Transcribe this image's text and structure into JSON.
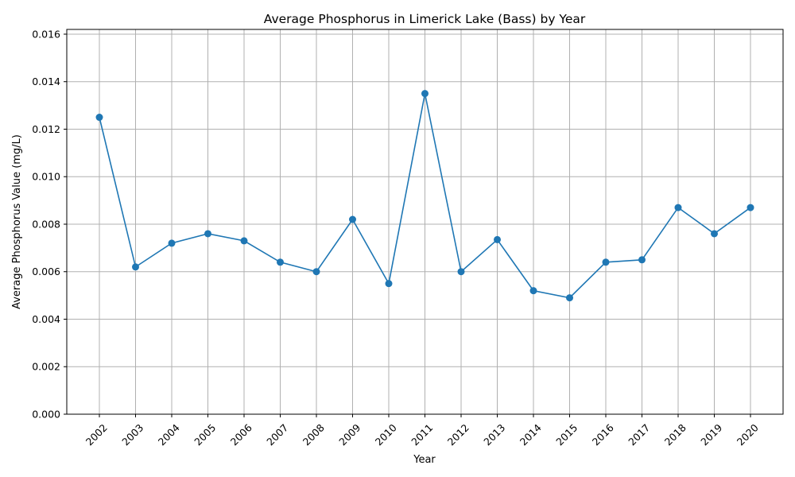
{
  "chart_data": {
    "type": "line",
    "title": "Average Phosphorus in Limerick Lake (Bass) by Year",
    "xlabel": "Year",
    "ylabel": "Average Phosphorus Value (mg/L)",
    "categories": [
      "2002",
      "2003",
      "2004",
      "2005",
      "2006",
      "2007",
      "2008",
      "2009",
      "2010",
      "2011",
      "2012",
      "2013",
      "2014",
      "2015",
      "2016",
      "2017",
      "2018",
      "2019",
      "2020"
    ],
    "series": [
      {
        "values": [
          0.0125,
          0.0062,
          0.0072,
          0.0076,
          0.0073,
          0.0064,
          0.006,
          0.0082,
          0.0055,
          0.0135,
          0.006,
          0.00735,
          0.0052,
          0.0049,
          0.0064,
          0.0065,
          0.0087,
          0.0076,
          0.0087
        ]
      }
    ],
    "ylim": [
      0,
      0.0162
    ],
    "yticks": [
      "0.000",
      "0.002",
      "0.004",
      "0.006",
      "0.008",
      "0.010",
      "0.012",
      "0.014",
      "0.016"
    ],
    "grid": true,
    "legend": "none",
    "colors": {
      "series": "#1f77b4",
      "grid": "#b0b0b0"
    }
  }
}
